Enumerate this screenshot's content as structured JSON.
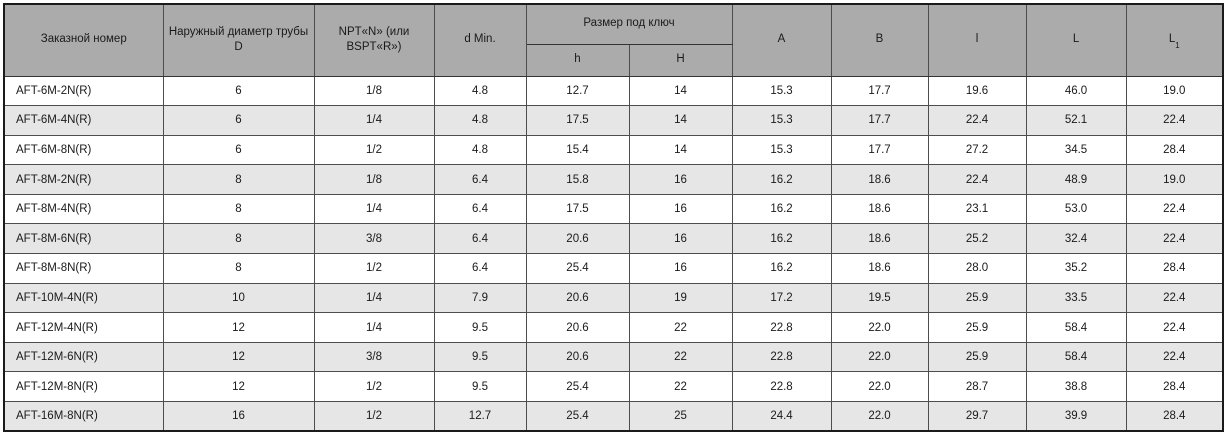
{
  "table": {
    "headers": {
      "order_number": "Заказной номер",
      "outer_diameter": "Наружный диаметр трубы D",
      "npt": "NPT«N» (или BSPT«R»)",
      "d_min": "d Min.",
      "wrench_size": "Размер под ключ",
      "h_small": "h",
      "h_cap": "H",
      "a": "A",
      "b": "B",
      "l_small": "l",
      "l_cap": "L",
      "l1_base": "L",
      "l1_sub": "1"
    },
    "column_keys": [
      "order-number",
      "tube-diameter-d",
      "npt-thread-size",
      "d-min",
      "wrench-h",
      "wrench-h-cap",
      "dim-a",
      "dim-b",
      "dim-l-small",
      "dim-l-cap",
      "dim-l1"
    ],
    "rows": [
      [
        "AFT-6M-2N(R)",
        "6",
        "1/8",
        "4.8",
        "12.7",
        "14",
        "15.3",
        "17.7",
        "19.6",
        "46.0",
        "19.0"
      ],
      [
        "AFT-6M-4N(R)",
        "6",
        "1/4",
        "4.8",
        "17.5",
        "14",
        "15.3",
        "17.7",
        "22.4",
        "52.1",
        "22.4"
      ],
      [
        "AFT-6M-8N(R)",
        "6",
        "1/2",
        "4.8",
        "15.4",
        "14",
        "15.3",
        "17.7",
        "27.2",
        "34.5",
        "28.4"
      ],
      [
        "AFT-8M-2N(R)",
        "8",
        "1/8",
        "6.4",
        "15.8",
        "16",
        "16.2",
        "18.6",
        "22.4",
        "48.9",
        "19.0"
      ],
      [
        "AFT-8M-4N(R)",
        "8",
        "1/4",
        "6.4",
        "17.5",
        "16",
        "16.2",
        "18.6",
        "23.1",
        "53.0",
        "22.4"
      ],
      [
        "AFT-8M-6N(R)",
        "8",
        "3/8",
        "6.4",
        "20.6",
        "16",
        "16.2",
        "18.6",
        "25.2",
        "32.4",
        "22.4"
      ],
      [
        "AFT-8M-8N(R)",
        "8",
        "1/2",
        "6.4",
        "25.4",
        "16",
        "16.2",
        "18.6",
        "28.0",
        "35.2",
        "28.4"
      ],
      [
        "AFT-10M-4N(R)",
        "10",
        "1/4",
        "7.9",
        "20.6",
        "19",
        "17.2",
        "19.5",
        "25.9",
        "33.5",
        "22.4"
      ],
      [
        "AFT-12M-4N(R)",
        "12",
        "1/4",
        "9.5",
        "20.6",
        "22",
        "22.8",
        "22.0",
        "25.9",
        "58.4",
        "22.4"
      ],
      [
        "AFT-12M-6N(R)",
        "12",
        "3/8",
        "9.5",
        "20.6",
        "22",
        "22.8",
        "22.0",
        "25.9",
        "58.4",
        "22.4"
      ],
      [
        "AFT-12M-8N(R)",
        "12",
        "1/2",
        "9.5",
        "25.4",
        "22",
        "22.8",
        "22.0",
        "28.7",
        "38.8",
        "28.4"
      ],
      [
        "AFT-16M-8N(R)",
        "16",
        "1/2",
        "12.7",
        "25.4",
        "25",
        "24.4",
        "22.0",
        "29.7",
        "39.9",
        "28.4"
      ]
    ]
  },
  "colors": {
    "header_bg": "#ababab",
    "stripe_bg": "#e6e6e6",
    "border": "#4d4d4d",
    "outer_border": "#1a1a1a",
    "text": "#1a1a1a"
  }
}
